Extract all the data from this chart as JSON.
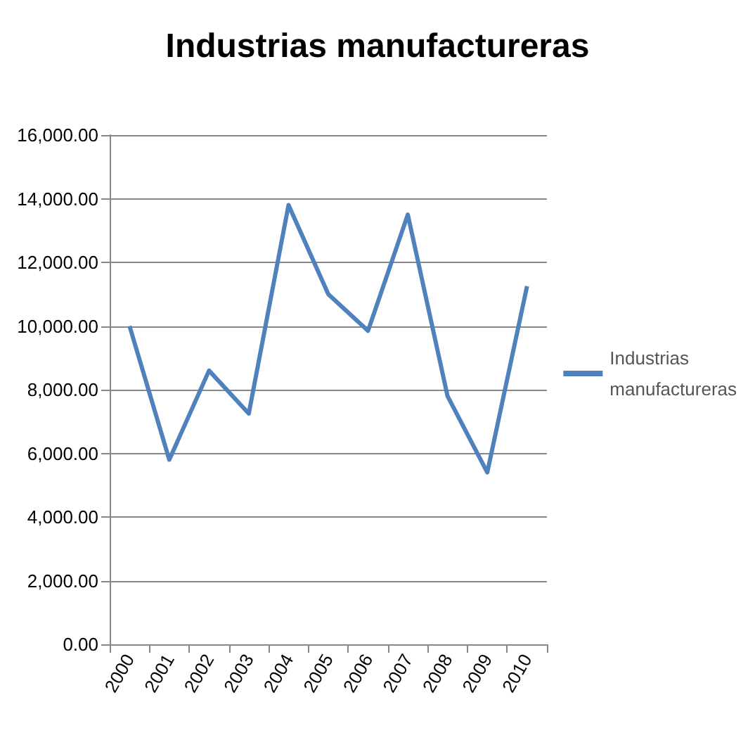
{
  "chart_data": {
    "type": "line",
    "title": "Industrias manufactureras",
    "categories": [
      "2000",
      "2001",
      "2002",
      "2003",
      "2004",
      "2005",
      "2006",
      "2007",
      "2008",
      "2009",
      "2010"
    ],
    "series": [
      {
        "name": "Industrias manufactureras",
        "color": "#4f81bd",
        "values": [
          10000,
          5800,
          8600,
          7250,
          13800,
          11000,
          9850,
          13500,
          7800,
          5400,
          11250
        ]
      }
    ],
    "ylim": [
      0,
      16000
    ],
    "yticks": [
      {
        "value": 0,
        "label": "0.00"
      },
      {
        "value": 2000,
        "label": "2,000.00"
      },
      {
        "value": 4000,
        "label": "4,000.00"
      },
      {
        "value": 6000,
        "label": "6,000.00"
      },
      {
        "value": 8000,
        "label": "8,000.00"
      },
      {
        "value": 10000,
        "label": "10,000.00"
      },
      {
        "value": 12000,
        "label": "12,000.00"
      },
      {
        "value": 14000,
        "label": "14,000.00"
      },
      {
        "value": 16000,
        "label": "16,000.00"
      }
    ],
    "grid": "y",
    "legend": "right",
    "marker": "none",
    "line_style": "solid"
  }
}
